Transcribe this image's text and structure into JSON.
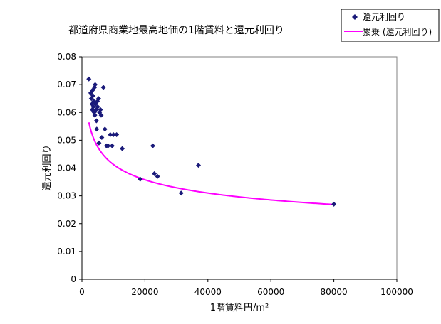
{
  "chart_data": {
    "type": "scatter",
    "title": "都道府県商業地最高地価の1階賃料と還元利回り",
    "xlabel": "1階賃料円/m²",
    "ylabel": "還元利回り",
    "xlim": [
      0,
      100000
    ],
    "ylim": [
      0,
      0.08
    ],
    "x_ticks": [
      0,
      20000,
      40000,
      60000,
      80000,
      100000
    ],
    "x_tick_labels": [
      "0",
      "20000",
      "40000",
      "60000",
      "80000",
      "100000"
    ],
    "y_ticks": [
      0,
      0.01,
      0.02,
      0.03,
      0.04,
      0.05,
      0.06,
      0.07,
      0.08
    ],
    "y_tick_labels": [
      "0",
      "0.01",
      "0.02",
      "0.03",
      "0.04",
      "0.05",
      "0.06",
      "0.07",
      "0.08"
    ],
    "grid": false,
    "legend_position": "top-right",
    "series": [
      {
        "name": "還元利回り",
        "kind": "markers",
        "color": "#1a1a7a",
        "marker": "diamond",
        "points": [
          [
            2200,
            0.072
          ],
          [
            2800,
            0.067
          ],
          [
            3000,
            0.065
          ],
          [
            3200,
            0.063
          ],
          [
            3300,
            0.061
          ],
          [
            3400,
            0.068
          ],
          [
            3500,
            0.066
          ],
          [
            3600,
            0.062
          ],
          [
            3800,
            0.064
          ],
          [
            3900,
            0.06
          ],
          [
            4000,
            0.069
          ],
          [
            4100,
            0.059
          ],
          [
            4200,
            0.07
          ],
          [
            4300,
            0.063
          ],
          [
            4500,
            0.061
          ],
          [
            4600,
            0.057
          ],
          [
            4700,
            0.054
          ],
          [
            4900,
            0.064
          ],
          [
            5000,
            0.062
          ],
          [
            5300,
            0.065
          ],
          [
            5400,
            0.049
          ],
          [
            5600,
            0.06
          ],
          [
            5900,
            0.061
          ],
          [
            6100,
            0.059
          ],
          [
            6300,
            0.051
          ],
          [
            6800,
            0.069
          ],
          [
            7300,
            0.054
          ],
          [
            7800,
            0.048
          ],
          [
            8300,
            0.048
          ],
          [
            9000,
            0.052
          ],
          [
            9600,
            0.048
          ],
          [
            10000,
            0.052
          ],
          [
            11000,
            0.052
          ],
          [
            12800,
            0.047
          ],
          [
            18500,
            0.036
          ],
          [
            22500,
            0.048
          ],
          [
            23000,
            0.038
          ],
          [
            24000,
            0.037
          ],
          [
            31500,
            0.031
          ],
          [
            37000,
            0.041
          ],
          [
            80000,
            0.027
          ]
        ]
      },
      {
        "name": "累乗 (還元利回り)",
        "kind": "power-trendline",
        "color": "#ff00ff",
        "coefficient": 0.276,
        "exponent": -0.2063,
        "x_range": [
          2200,
          80000
        ]
      }
    ]
  }
}
